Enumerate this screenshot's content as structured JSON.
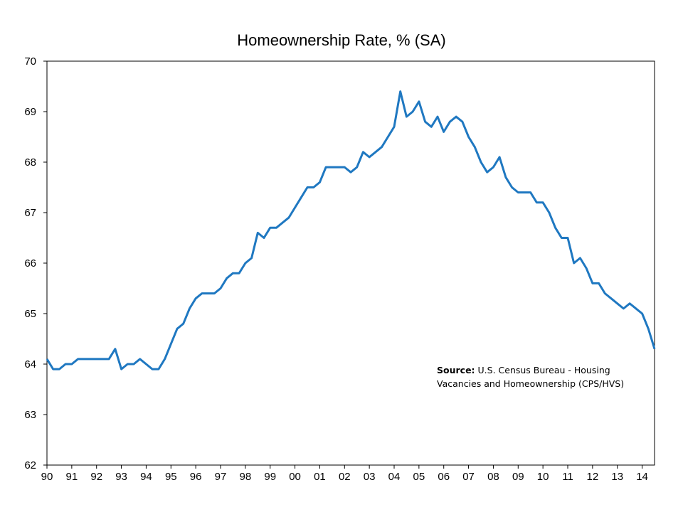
{
  "chart_data": {
    "type": "line",
    "title": "Homeownership Rate, % (SA)",
    "xlabel": "",
    "ylabel": "",
    "ylim": [
      62,
      70
    ],
    "yticks": [
      "62",
      "63",
      "64",
      "65",
      "66",
      "67",
      "68",
      "69",
      "70"
    ],
    "xticks": [
      "90",
      "91",
      "92",
      "93",
      "94",
      "95",
      "96",
      "97",
      "98",
      "99",
      "00",
      "01",
      "02",
      "03",
      "04",
      "05",
      "06",
      "07",
      "08",
      "09",
      "10",
      "11",
      "12",
      "13",
      "14"
    ],
    "x_start_year": 1990,
    "grid": false,
    "legend": "none",
    "series": [
      {
        "color": "#1F78C1",
        "frequency": "quarterly",
        "start": "1990Q1",
        "values": [
          64.1,
          63.9,
          63.9,
          64.0,
          64.0,
          64.1,
          64.1,
          64.1,
          64.1,
          64.1,
          64.1,
          64.3,
          63.9,
          64.0,
          64.0,
          64.1,
          64.0,
          63.9,
          63.9,
          64.1,
          64.4,
          64.7,
          64.8,
          65.1,
          65.3,
          65.4,
          65.4,
          65.4,
          65.5,
          65.7,
          65.8,
          65.8,
          66.0,
          66.1,
          66.6,
          66.5,
          66.7,
          66.7,
          66.8,
          66.9,
          67.1,
          67.3,
          67.5,
          67.5,
          67.6,
          67.9,
          67.9,
          67.9,
          67.9,
          67.8,
          67.9,
          68.2,
          68.1,
          68.2,
          68.3,
          68.5,
          68.7,
          69.4,
          68.9,
          69.0,
          69.2,
          68.8,
          68.7,
          68.9,
          68.6,
          68.8,
          68.9,
          68.8,
          68.5,
          68.3,
          68.0,
          67.8,
          67.9,
          68.1,
          67.7,
          67.5,
          67.4,
          67.4,
          67.4,
          67.2,
          67.2,
          67.0,
          66.7,
          66.5,
          66.5,
          66.0,
          66.1,
          65.9,
          65.6,
          65.6,
          65.4,
          65.3,
          65.2,
          65.1,
          65.2,
          65.1,
          65.0,
          64.7,
          64.3
        ]
      }
    ],
    "annotation": {
      "label": "Source:",
      "text_line1": "U.S. Census Bureau - Housing",
      "text_line2": "Vacancies and Homeownership (CPS/HVS)"
    }
  }
}
